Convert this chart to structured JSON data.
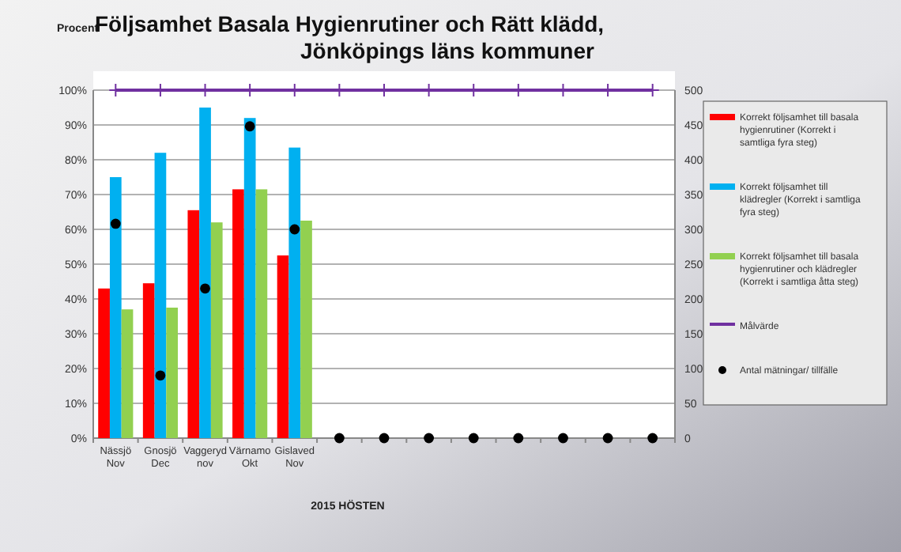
{
  "chart_data": {
    "type": "bar",
    "title": "Följsamhet Basala Hygienrutiner och Rätt klädd,\nJönköpings läns kommuner",
    "ylabel": "Procent",
    "xlabel": "2015 HÖSTEN",
    "categories": [
      "Nässjö\nNov",
      "Gnosjö\nDec",
      "Vaggeryd\nnov",
      "Värnamo\nOkt",
      "Gislaved\nNov",
      null,
      null,
      null,
      null,
      null,
      null,
      null,
      null
    ],
    "series": [
      {
        "name": "Korrekt följsamhet till basala hygienrutiner (Korrekt i samtliga fyra steg)",
        "color": "#ff0000",
        "values": [
          43,
          44.5,
          65.5,
          71.5,
          52.5,
          null,
          null,
          null,
          null,
          null,
          null,
          null,
          null
        ]
      },
      {
        "name": "Korrekt följsamhet till klädregler (Korrekt i samtliga fyra steg)",
        "color": "#00b0f0",
        "values": [
          75,
          82,
          95,
          92,
          83.5,
          null,
          null,
          null,
          null,
          null,
          null,
          null,
          null
        ]
      },
      {
        "name": "Korrekt följsamhet till basala hygienrutiner och klädregler (Korrekt i samtliga åtta steg)",
        "color": "#92d050",
        "values": [
          37,
          37.5,
          62,
          71.5,
          62.5,
          null,
          null,
          null,
          null,
          null,
          null,
          null,
          null
        ]
      },
      {
        "name": "Målvärde",
        "type": "line",
        "color": "#7030a0",
        "marker": "cross",
        "values": [
          100,
          100,
          100,
          100,
          100,
          100,
          100,
          100,
          100,
          100,
          100,
          100,
          100
        ]
      },
      {
        "name": "Antal mätningar/   tillfälle",
        "type": "scatter",
        "axis": "y2",
        "color": "#000000",
        "marker": "circle",
        "values": [
          308,
          90,
          215,
          448,
          300,
          0,
          0,
          0,
          0,
          0,
          0,
          0,
          0
        ]
      }
    ],
    "ylim": [
      0,
      100
    ],
    "yticks": [
      {
        "value": 0,
        "label": "0%"
      },
      {
        "value": 10,
        "label": "10%"
      },
      {
        "value": 20,
        "label": "20%"
      },
      {
        "value": 30,
        "label": "30%"
      },
      {
        "value": 40,
        "label": "40%"
      },
      {
        "value": 50,
        "label": "50%"
      },
      {
        "value": 60,
        "label": "60%"
      },
      {
        "value": 70,
        "label": "70%"
      },
      {
        "value": 80,
        "label": "80%"
      },
      {
        "value": 90,
        "label": "90%"
      },
      {
        "value": 100,
        "label": "100%"
      }
    ],
    "y2lim": [
      0,
      500
    ],
    "y2ticks": [
      0,
      50,
      100,
      150,
      200,
      250,
      300,
      350,
      400,
      450,
      500
    ],
    "grid": "y",
    "legend": "right"
  }
}
